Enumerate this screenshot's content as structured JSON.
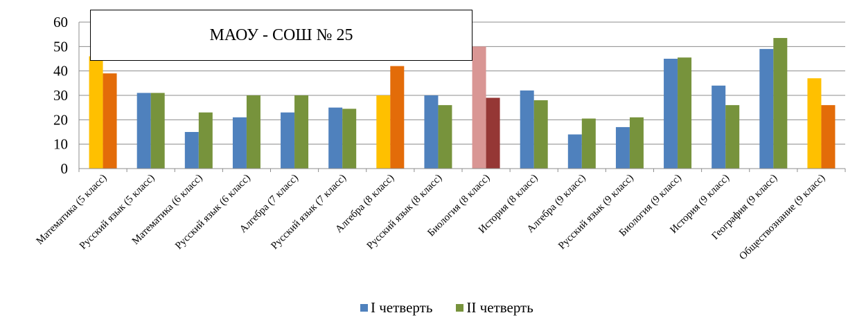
{
  "chart_data": {
    "type": "bar",
    "title": "МАОУ - СОШ № 25",
    "categories": [
      "Математика (5 класс)",
      "Русский язык (5 класс)",
      "Математика (6 класс)",
      "Русский язык (6 класс)",
      "Алгебра (7 класс)",
      "Русский язык (7 класс)",
      "Алгебра (8 класс)",
      "Русский язык (8 класс)",
      "Биология (8 класс)",
      "История (8 класс)",
      "Алгебра (9 класс)",
      "Русский язык (9 класс)",
      "Биология (9 класс)",
      "История (9 класс)",
      "География (9 класс)",
      "Обществознание (9 класс)"
    ],
    "series": [
      {
        "name": "I четверть",
        "color": "#4f81bd",
        "values": [
          46,
          31,
          15,
          21,
          23,
          25,
          30,
          30,
          50,
          32,
          14,
          17,
          45,
          34,
          49,
          37
        ],
        "point_colors": [
          "#ffc000",
          null,
          null,
          null,
          null,
          null,
          "#ffc000",
          null,
          "#d99694",
          null,
          null,
          null,
          null,
          null,
          null,
          "#ffc000"
        ]
      },
      {
        "name": "II четверть",
        "color": "#77933c",
        "values": [
          39,
          31,
          23,
          30,
          30,
          24.5,
          42,
          26,
          29,
          28,
          20.5,
          21,
          45.5,
          26,
          53.5,
          26
        ],
        "point_colors": [
          "#e36c09",
          null,
          null,
          null,
          null,
          null,
          "#e36c09",
          null,
          "#953735",
          null,
          null,
          null,
          null,
          null,
          null,
          "#e36c09"
        ]
      }
    ],
    "ylim": [
      0,
      60
    ],
    "yticks": [
      0,
      10,
      20,
      30,
      40,
      50,
      60
    ],
    "grid": true,
    "legend_position": "bottom"
  }
}
